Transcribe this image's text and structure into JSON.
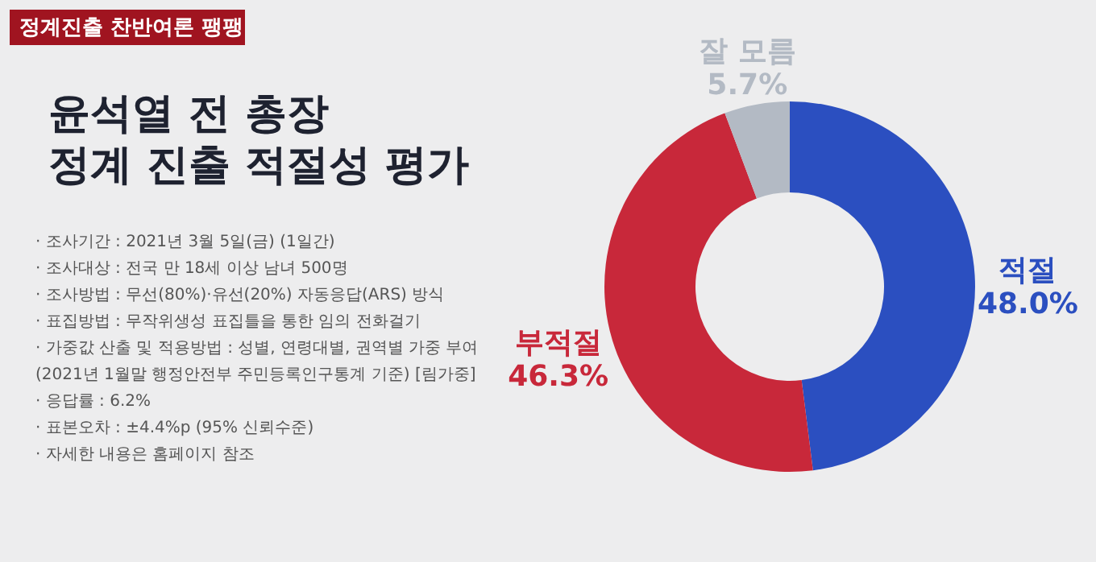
{
  "chart_data": {
    "type": "donut",
    "title": "윤석열 전 총장\n정계 진출 적절성 평가",
    "categories": [
      "적절",
      "부적절",
      "잘 모름"
    ],
    "values": [
      48.0,
      46.3,
      5.7
    ],
    "colors": [
      "#2b4fc0",
      "#c8283a",
      "#b3bac4"
    ],
    "value_labels": [
      "48.0%",
      "46.3%",
      "5.7%"
    ],
    "annotations": [
      "정계진출 찬반여론 팽팽",
      "· 조사기간 : 2021년 3월 5일(금) (1일간)",
      "· 조사대상 : 전국 만 18세 이상 남녀 500명",
      "· 조사방법 : 무선(80%)·유선(20%) 자동응답(ARS) 방식",
      "· 표집방법 : 무작위생성 표집틀을 통한 임의 전화걸기",
      "· 가중값 산출 및 적용방법 : 성별, 연령대별, 권역별 가중 부여",
      "(2021년 1월말 행정안전부 주민등록인구통계 기준) [림가중]",
      "· 응답률 : 6.2%",
      "· 표본오차 : ±4.4%p (95% 신뢰수준)",
      "· 자세한 내용은 홈페이지 참조"
    ]
  }
}
